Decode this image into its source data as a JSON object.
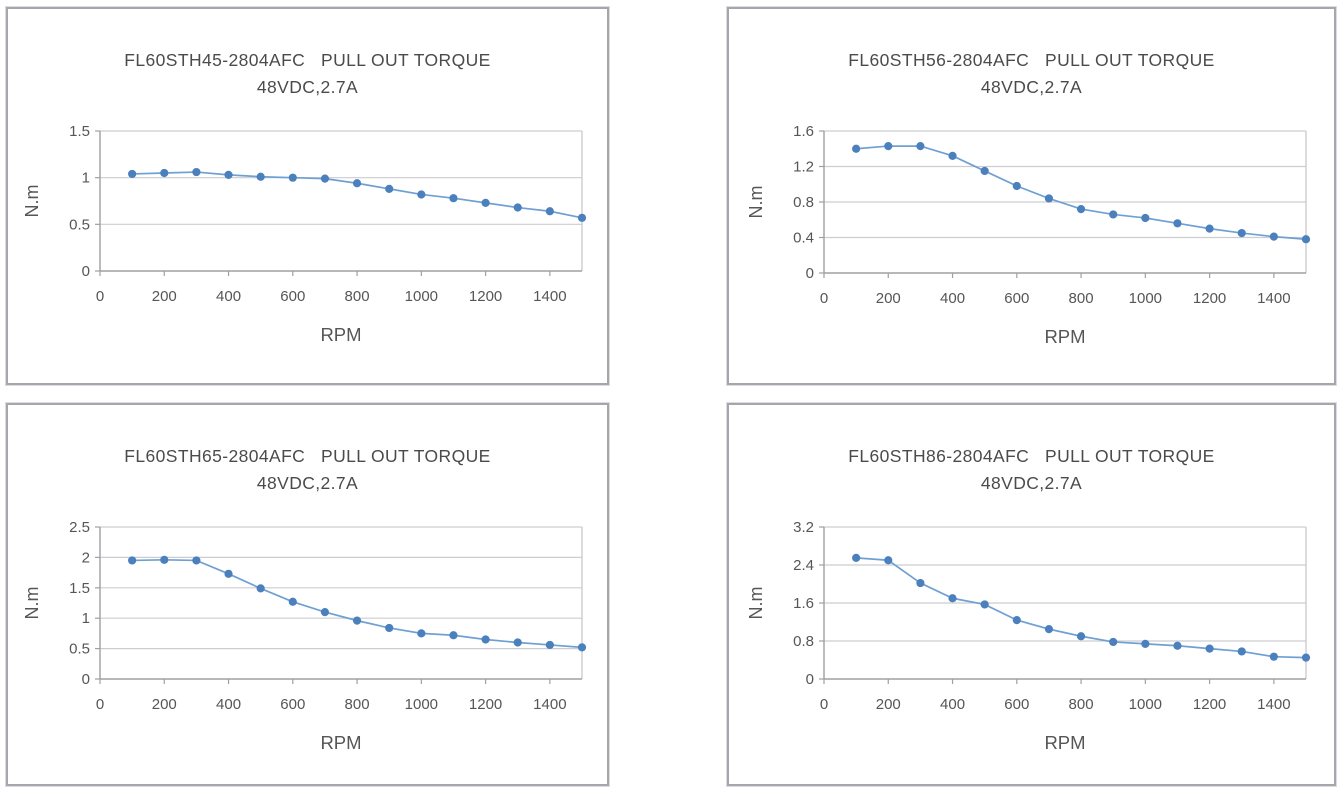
{
  "page": {
    "background": "#ffffff",
    "description_labels": {
      "torque_unit": "N.m",
      "speed_unit": "RPM"
    }
  },
  "colors": {
    "series_line": "#6fa0d3",
    "series_marker": "#4b80bd",
    "gridline": "#cdcdd1",
    "axis_line": "#9fa0a4",
    "plot_border": "#c6c6ca",
    "tick_text": "#565656",
    "title_text": "#4b4b4b",
    "panel_border": "#a6a6ac"
  },
  "chart_data": [
    {
      "type": "line",
      "title": "FL60STH45-2804AFC   PULL OUT TORQUE",
      "subtitle": "48VDC,2.7A",
      "xlabel": "RPM",
      "ylabel": "N.m",
      "legend": "none",
      "grid": "horizontal",
      "x": [
        100,
        200,
        300,
        400,
        500,
        600,
        700,
        800,
        900,
        1000,
        1100,
        1200,
        1300,
        1400,
        1500
      ],
      "values": [
        1.04,
        1.05,
        1.06,
        1.03,
        1.01,
        1.0,
        0.99,
        0.94,
        0.88,
        0.82,
        0.78,
        0.73,
        0.68,
        0.64,
        0.57
      ],
      "xlim": [
        0,
        1500
      ],
      "ylim": [
        0,
        1.5
      ],
      "x_ticks": [
        0,
        200,
        400,
        600,
        800,
        1000,
        1200,
        1400
      ],
      "y_ticks": [
        0,
        0.5,
        1,
        1.5
      ]
    },
    {
      "type": "line",
      "title": "FL60STH56-2804AFC   PULL OUT TORQUE",
      "subtitle": "48VDC,2.7A",
      "xlabel": "RPM",
      "ylabel": "N.m",
      "legend": "none",
      "grid": "horizontal",
      "x": [
        100,
        200,
        300,
        400,
        500,
        600,
        700,
        800,
        900,
        1000,
        1100,
        1200,
        1300,
        1400,
        1500
      ],
      "values": [
        1.4,
        1.43,
        1.43,
        1.32,
        1.15,
        0.98,
        0.84,
        0.72,
        0.66,
        0.62,
        0.56,
        0.5,
        0.45,
        0.41,
        0.38
      ],
      "xlim": [
        0,
        1500
      ],
      "ylim": [
        0,
        1.6
      ],
      "x_ticks": [
        0,
        200,
        400,
        600,
        800,
        1000,
        1200,
        1400
      ],
      "y_ticks": [
        0,
        0.4,
        0.8,
        1.2,
        1.6
      ]
    },
    {
      "type": "line",
      "title": "FL60STH65-2804AFC   PULL OUT TORQUE",
      "subtitle": "48VDC,2.7A",
      "xlabel": "RPM",
      "ylabel": "N.m",
      "legend": "none",
      "grid": "horizontal",
      "x": [
        100,
        200,
        300,
        400,
        500,
        600,
        700,
        800,
        900,
        1000,
        1100,
        1200,
        1300,
        1400,
        1500
      ],
      "values": [
        1.95,
        1.96,
        1.95,
        1.73,
        1.49,
        1.27,
        1.1,
        0.96,
        0.84,
        0.75,
        0.72,
        0.65,
        0.6,
        0.56,
        0.52
      ],
      "xlim": [
        0,
        1500
      ],
      "ylim": [
        0,
        2.5
      ],
      "x_ticks": [
        0,
        200,
        400,
        600,
        800,
        1000,
        1200,
        1400
      ],
      "y_ticks": [
        0,
        0.5,
        1,
        1.5,
        2,
        2.5
      ]
    },
    {
      "type": "line",
      "title": "FL60STH86-2804AFC   PULL OUT TORQUE",
      "subtitle": "48VDC,2.7A",
      "xlabel": "RPM",
      "ylabel": "N.m",
      "legend": "none",
      "grid": "horizontal",
      "x": [
        100,
        200,
        300,
        400,
        500,
        600,
        700,
        800,
        900,
        1000,
        1100,
        1200,
        1300,
        1400,
        1500
      ],
      "values": [
        2.55,
        2.5,
        2.02,
        1.7,
        1.57,
        1.24,
        1.05,
        0.9,
        0.78,
        0.74,
        0.7,
        0.64,
        0.58,
        0.47,
        0.45
      ],
      "xlim": [
        0,
        1500
      ],
      "ylim": [
        0,
        3.2
      ],
      "x_ticks": [
        0,
        200,
        400,
        600,
        800,
        1000,
        1200,
        1400
      ],
      "y_ticks": [
        0,
        0.8,
        1.6,
        2.4,
        3.2
      ]
    }
  ]
}
